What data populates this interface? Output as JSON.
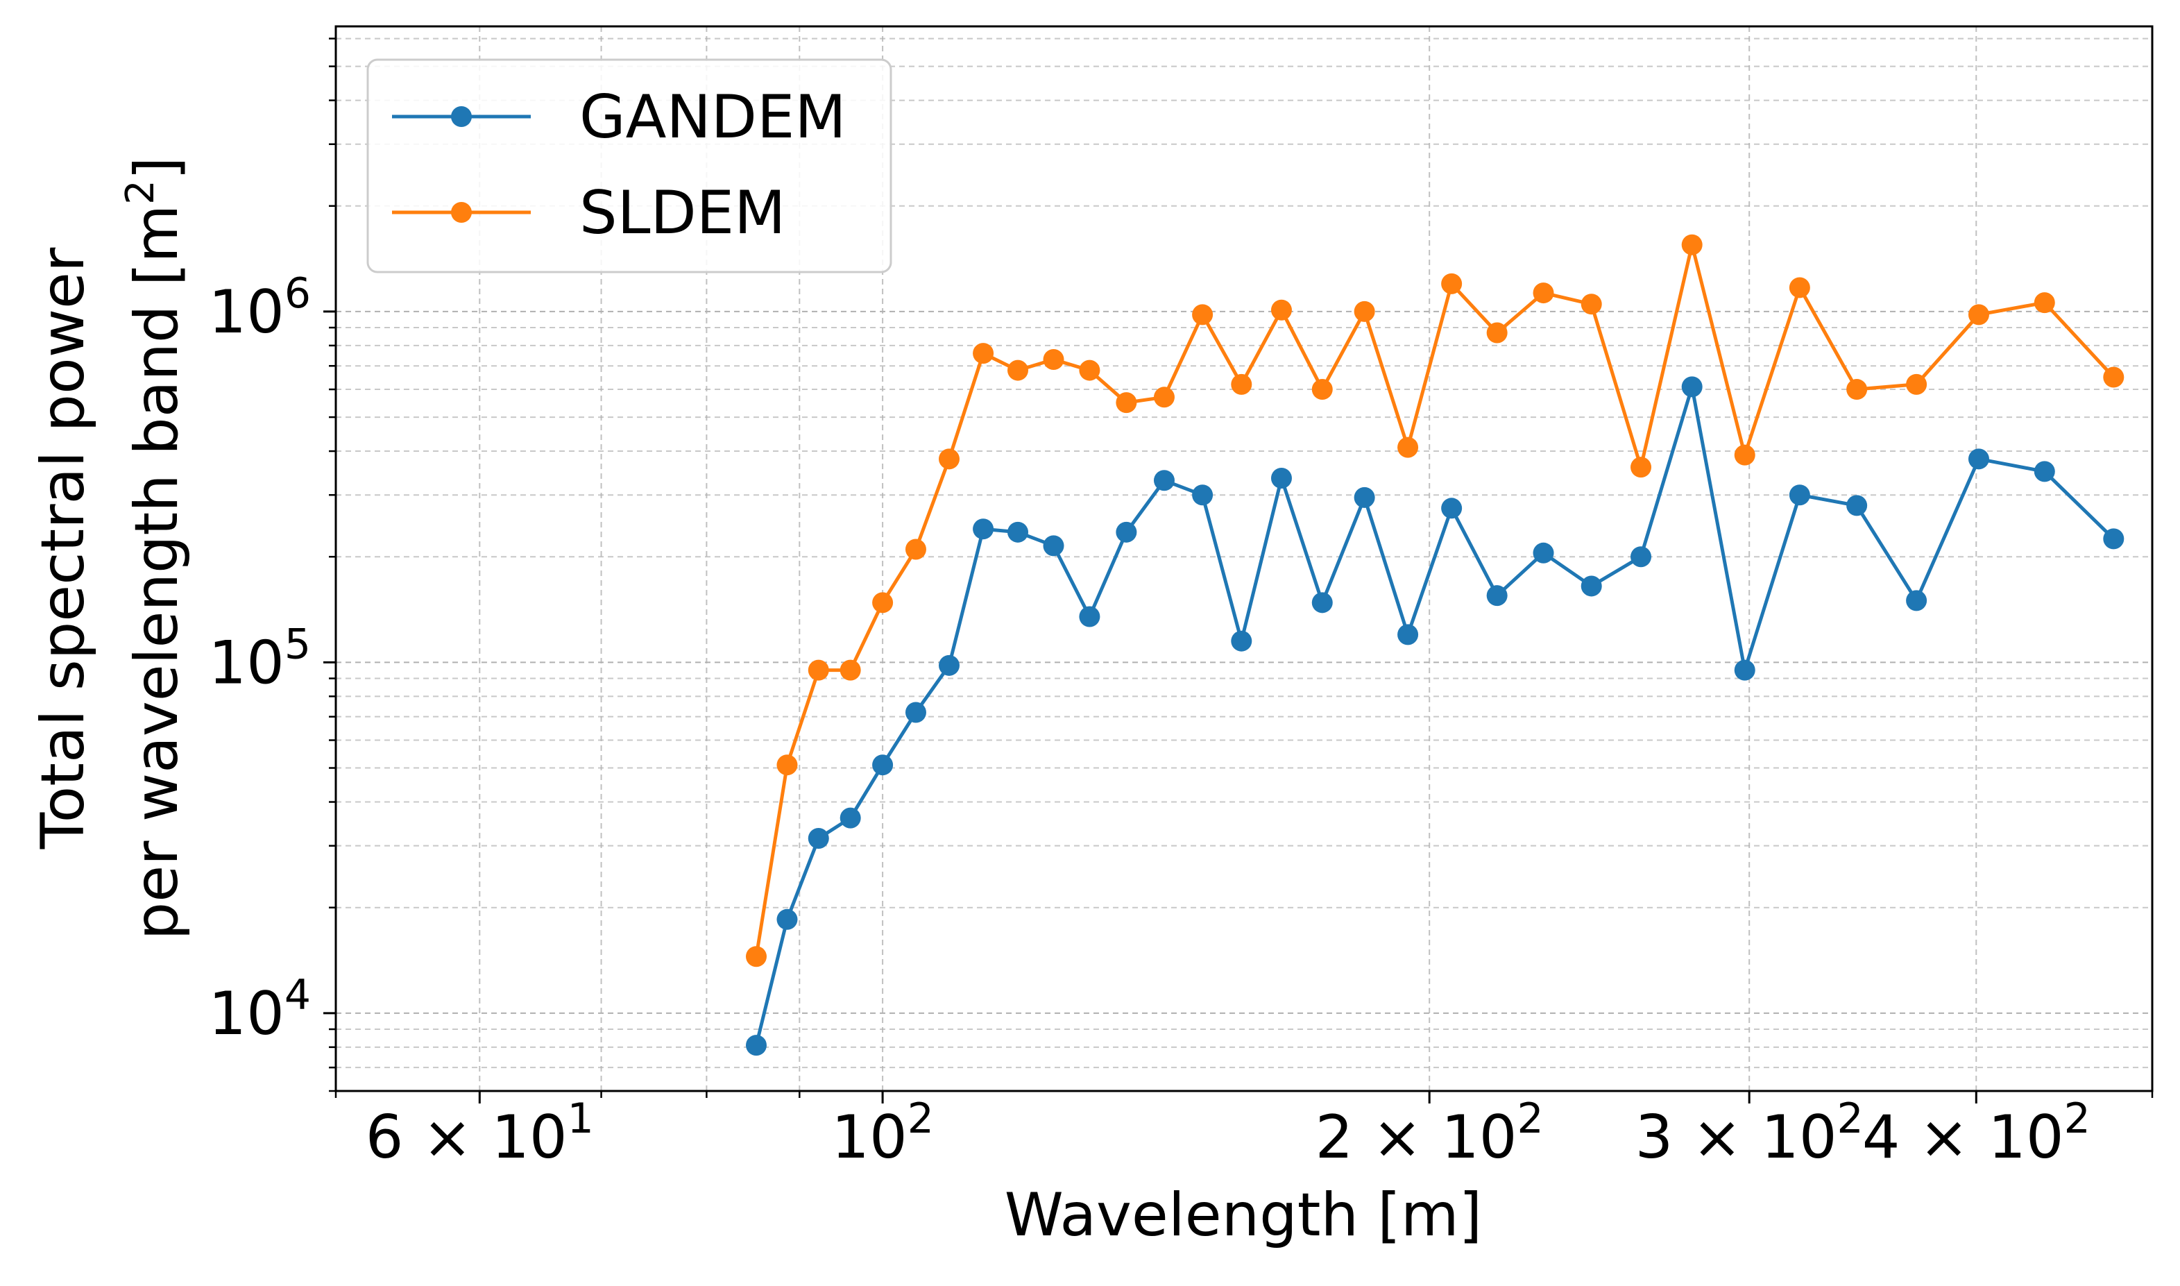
{
  "chart_data": {
    "type": "line",
    "xscale": "log",
    "yscale": "log",
    "xlabel": "Wavelength [m]",
    "ylabel_line1": "Total spectral power",
    "ylabel_line2": "per wavelength band [m",
    "ylabel_sup": "2",
    "ylabel_end": "]",
    "xlim": [
      50,
      500
    ],
    "ylim": [
      6000,
      6500000
    ],
    "grid": true,
    "legend_position": "top-left",
    "x_ticks": [
      {
        "value": 60,
        "mantissa": "6",
        "exp": "1"
      },
      {
        "value": 100,
        "mantissa": "",
        "exp": "2"
      },
      {
        "value": 200,
        "mantissa": "2",
        "exp": "2"
      },
      {
        "value": 300,
        "mantissa": "3",
        "exp": "2"
      },
      {
        "value": 400,
        "mantissa": "4",
        "exp": "2"
      }
    ],
    "y_ticks": [
      {
        "value": 10000,
        "exp": "4"
      },
      {
        "value": 100000,
        "exp": "5"
      },
      {
        "value": 1000000,
        "exp": "6"
      }
    ],
    "times_sign": "×",
    "base": "10",
    "series": [
      {
        "name": "GANDEM",
        "color": "#1f77b4",
        "x": [
          85.2,
          88.6,
          92.2,
          96.0,
          100.0,
          104.3,
          108.8,
          113.6,
          118.7,
          124.2,
          130.0,
          136.2,
          142.9,
          150.0,
          157.6,
          165.8,
          174.6,
          184.2,
          194.6,
          205.7,
          217.9,
          231.1,
          245.6,
          261.5,
          279.0,
          298.3,
          319.8,
          343.8,
          370.8,
          401.3,
          436.2,
          476.1
        ],
        "values": [
          8100,
          18500,
          31500,
          36000,
          51000,
          72000,
          98000,
          240000,
          235000,
          215000,
          135000,
          235000,
          330000,
          300000,
          115000,
          335000,
          148000,
          295000,
          120000,
          275000,
          155000,
          205000,
          165000,
          200000,
          610000,
          95000,
          300000,
          280000,
          150000,
          380000,
          350000,
          225000
        ]
      },
      {
        "name": "SLDEM",
        "color": "#ff7f0e",
        "x": [
          85.2,
          88.6,
          92.2,
          96.0,
          100.0,
          104.3,
          108.8,
          113.6,
          118.7,
          124.2,
          130.0,
          136.2,
          142.9,
          150.0,
          157.6,
          165.8,
          174.6,
          184.2,
          194.6,
          205.7,
          217.9,
          231.1,
          245.6,
          261.5,
          279.0,
          298.3,
          319.8,
          343.8,
          370.8,
          401.3,
          436.2,
          476.1
        ],
        "values": [
          14500,
          51000,
          95000,
          95000,
          148000,
          210000,
          380000,
          760000,
          680000,
          730000,
          680000,
          550000,
          570000,
          980000,
          620000,
          1010000,
          600000,
          1000000,
          410000,
          1200000,
          870000,
          1130000,
          1050000,
          360000,
          1550000,
          390000,
          1170000,
          600000,
          620000,
          980000,
          1060000,
          650000
        ]
      }
    ]
  }
}
